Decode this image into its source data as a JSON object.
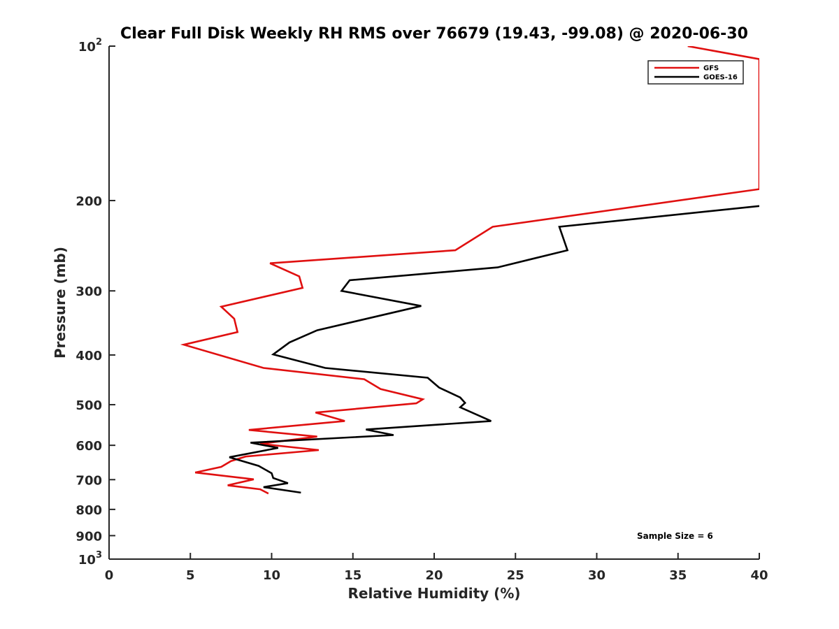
{
  "chart_data": {
    "type": "line",
    "title": "Clear Full Disk Weekly RH RMS over 76679 (19.43, -99.08) @ 2020-06-30",
    "xlabel": "Relative Humidity (%)",
    "ylabel": "Pressure (mb)",
    "xlim": [
      0,
      40
    ],
    "ylim": [
      100,
      1000
    ],
    "yscale": "log",
    "y_reversed": true,
    "grid": false,
    "legend_position": "top-right",
    "x_ticks": [
      "0",
      "5",
      "10",
      "15",
      "20",
      "25",
      "30",
      "35",
      "40"
    ],
    "y_ticks": [
      {
        "value": 100,
        "base": "10",
        "exp": "2"
      },
      {
        "value": 200,
        "label": "200"
      },
      {
        "value": 300,
        "label": "300"
      },
      {
        "value": 400,
        "label": "400"
      },
      {
        "value": 500,
        "label": "500"
      },
      {
        "value": 600,
        "label": "600"
      },
      {
        "value": 700,
        "label": "700"
      },
      {
        "value": 800,
        "label": "800"
      },
      {
        "value": 900,
        "label": "900"
      },
      {
        "value": 1000,
        "base": "10",
        "exp": "3"
      }
    ],
    "series": [
      {
        "name": "GFS",
        "color": "#e01010",
        "points": [
          [
            35.6,
            100
          ],
          [
            40,
            106
          ],
          [
            40,
            190
          ],
          [
            23.6,
            225
          ],
          [
            21.3,
            250
          ],
          [
            9.9,
            265
          ],
          [
            11.7,
            281
          ],
          [
            11.9,
            296
          ],
          [
            6.9,
            322
          ],
          [
            7.7,
            340
          ],
          [
            7.9,
            361
          ],
          [
            4.6,
            382
          ],
          [
            9.5,
            424
          ],
          [
            15.7,
            446
          ],
          [
            16.7,
            466
          ],
          [
            19.3,
            488
          ],
          [
            18.9,
            497
          ],
          [
            12.7,
            518
          ],
          [
            14.5,
            538
          ],
          [
            8.6,
            560
          ],
          [
            12.8,
            577
          ],
          [
            9.3,
            596
          ],
          [
            12.9,
            613
          ],
          [
            8.4,
            631
          ],
          [
            7.5,
            644
          ],
          [
            6.9,
            661
          ],
          [
            5.3,
            678
          ],
          [
            8.9,
            699
          ],
          [
            7.3,
            718
          ],
          [
            9.3,
            731
          ],
          [
            9.8,
            745
          ]
        ]
      },
      {
        "name": "GOES-16",
        "color": "#000000",
        "points": [
          [
            40,
            205
          ],
          [
            27.7,
            225
          ],
          [
            28.2,
            250
          ],
          [
            23.9,
            270
          ],
          [
            14.8,
            286
          ],
          [
            14.3,
            300
          ],
          [
            19.2,
            321
          ],
          [
            12.8,
            358
          ],
          [
            11.1,
            378
          ],
          [
            10.1,
            399
          ],
          [
            13.3,
            424
          ],
          [
            19.6,
            443
          ],
          [
            20.3,
            463
          ],
          [
            21.6,
            484
          ],
          [
            21.9,
            496
          ],
          [
            21.6,
            506
          ],
          [
            23.5,
            538
          ],
          [
            15.8,
            559
          ],
          [
            17.5,
            573
          ],
          [
            8.7,
            593
          ],
          [
            10.4,
            607
          ],
          [
            7.4,
            633
          ],
          [
            9.2,
            658
          ],
          [
            10,
            680
          ],
          [
            10.1,
            695
          ],
          [
            11,
            711
          ],
          [
            9.5,
            724
          ],
          [
            11.8,
            742
          ]
        ]
      }
    ],
    "legend": [
      "GFS",
      "GOES-16"
    ],
    "annotation": "Sample Size = 6"
  }
}
